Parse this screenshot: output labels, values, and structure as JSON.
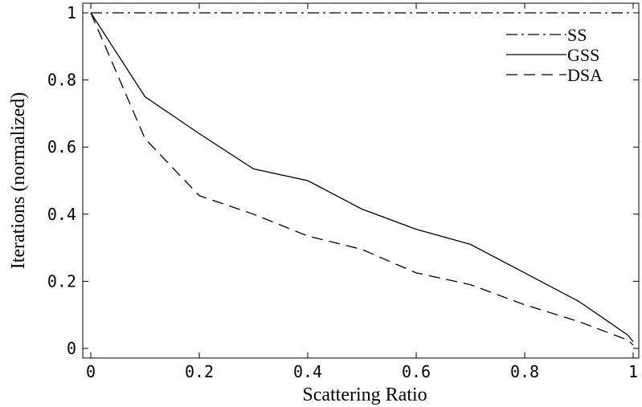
{
  "chart_data": {
    "type": "line",
    "title": "",
    "xlabel": "Scattering Ratio",
    "ylabel": "Iterations (normalized)",
    "xlim": [
      0,
      1
    ],
    "ylim": [
      0,
      1
    ],
    "x_ticks": [
      {
        "value": 0,
        "label": "0"
      },
      {
        "value": 0.2,
        "label": "0.2"
      },
      {
        "value": 0.4,
        "label": "0.4"
      },
      {
        "value": 0.6,
        "label": "0.6"
      },
      {
        "value": 0.8,
        "label": "0.8"
      },
      {
        "value": 1,
        "label": "1"
      }
    ],
    "y_ticks": [
      {
        "value": 0,
        "label": "0"
      },
      {
        "value": 0.2,
        "label": "0.2"
      },
      {
        "value": 0.4,
        "label": "0.4"
      },
      {
        "value": 0.6,
        "label": "0.6"
      },
      {
        "value": 0.8,
        "label": "0.8"
      },
      {
        "value": 1,
        "label": "1"
      }
    ],
    "grid": false,
    "legend_position": "top-right",
    "series": [
      {
        "name": "SS",
        "dash": "dash-dot",
        "color": "#000000",
        "x": [
          0,
          1
        ],
        "y": [
          1,
          1
        ]
      },
      {
        "name": "GSS",
        "dash": "solid",
        "color": "#000000",
        "x": [
          0,
          0.1,
          0.2,
          0.3,
          0.4,
          0.5,
          0.6,
          0.7,
          0.8,
          0.9,
          0.99,
          1.0
        ],
        "y": [
          1,
          0.75,
          0.64,
          0.535,
          0.5,
          0.415,
          0.355,
          0.31,
          0.225,
          0.14,
          0.04,
          0.02
        ]
      },
      {
        "name": "DSA",
        "dash": "dashed",
        "color": "#000000",
        "x": [
          0,
          0.1,
          0.2,
          0.3,
          0.4,
          0.5,
          0.6,
          0.7,
          0.8,
          0.9,
          0.99,
          1.0
        ],
        "y": [
          1,
          0.625,
          0.455,
          0.4,
          0.335,
          0.295,
          0.225,
          0.19,
          0.13,
          0.08,
          0.025,
          0.01
        ]
      }
    ]
  }
}
